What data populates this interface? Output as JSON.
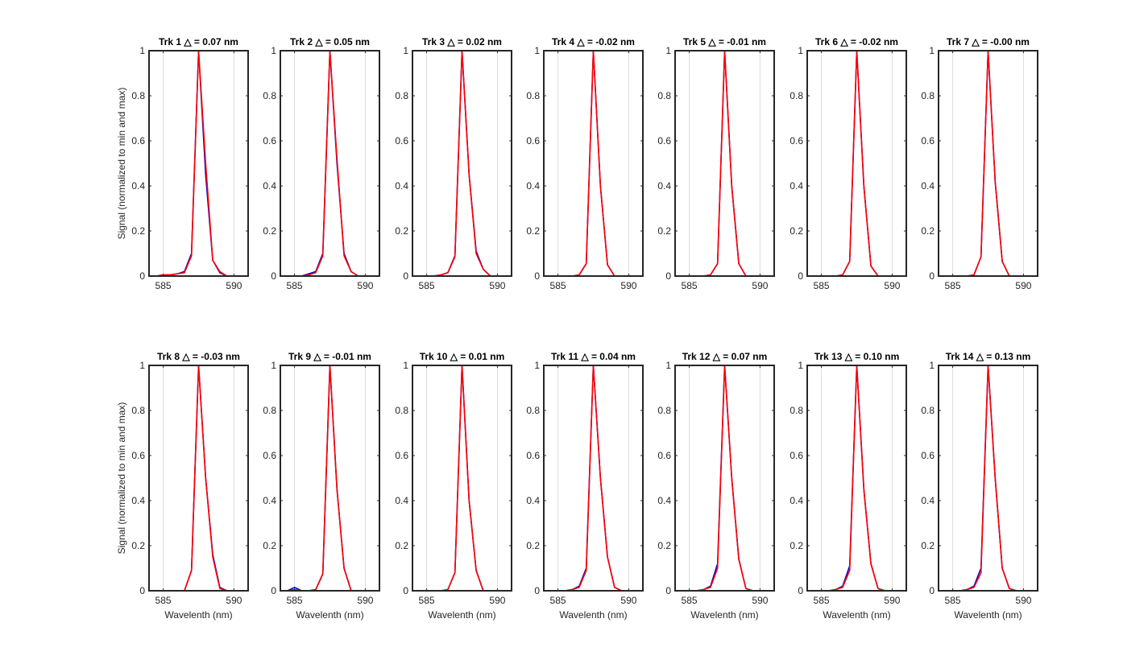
{
  "chart_data": {
    "type": "line",
    "grid": true,
    "xlim": [
      584,
      591
    ],
    "ylim": [
      0,
      1
    ],
    "xticks": [
      "585",
      "590"
    ],
    "yticks": [
      "0",
      "0.2",
      "0.4",
      "0.6",
      "0.8",
      "1"
    ],
    "xlabel": "Wavelenth (nm)",
    "ylabel": "Signal (normalized to min and max)",
    "x": [
      584,
      584.5,
      585,
      585.5,
      586,
      586.5,
      587,
      587.5,
      588,
      588.5,
      589,
      589.5,
      590,
      590.5,
      591
    ],
    "colors": {
      "blue": "#0000cc",
      "red": "#ff0000",
      "axis": "#262626",
      "grid": "#dcdcdc"
    },
    "panels": [
      {
        "title": "Trk 1 △ = 0.07 nm",
        "blue": [
          0,
          0,
          0.005,
          0.005,
          0.01,
          0.02,
          0.1,
          1,
          0.45,
          0.07,
          0.015,
          0,
          0,
          0,
          0
        ],
        "red": [
          0,
          0,
          0.005,
          0.005,
          0.01,
          0.015,
          0.09,
          1,
          0.5,
          0.07,
          0.02,
          0,
          0,
          0,
          0
        ]
      },
      {
        "title": "Trk 2 △ = 0.05 nm",
        "blue": [
          0,
          0,
          0,
          0,
          0.01,
          0.02,
          0.1,
          1,
          0.5,
          0.1,
          0.02,
          0,
          0,
          0,
          0
        ],
        "red": [
          0,
          0,
          0,
          0,
          0.005,
          0.015,
          0.09,
          1,
          0.52,
          0.09,
          0.02,
          0,
          0,
          0,
          0
        ]
      },
      {
        "title": "Trk 3 △ = 0.02 nm",
        "blue": [
          0,
          0,
          0,
          0,
          0.005,
          0.015,
          0.09,
          1,
          0.45,
          0.11,
          0.03,
          0,
          0,
          0,
          0
        ],
        "red": [
          0,
          0,
          0,
          0,
          0.005,
          0.015,
          0.085,
          1,
          0.45,
          0.1,
          0.03,
          0,
          0,
          0,
          0
        ]
      },
      {
        "title": "Trk 4 △ = -0.02 nm",
        "blue": [
          0,
          0,
          0,
          0,
          0,
          0.005,
          0.055,
          1,
          0.4,
          0.05,
          0,
          0,
          0,
          0,
          0
        ],
        "red": [
          0,
          0,
          0,
          0,
          0,
          0.005,
          0.055,
          1,
          0.4,
          0.05,
          0,
          0,
          0,
          0,
          0
        ]
      },
      {
        "title": "Trk 5 △ = -0.01 nm",
        "blue": [
          0,
          0,
          0,
          0,
          0,
          0.005,
          0.055,
          1,
          0.4,
          0.055,
          0,
          0,
          0,
          0,
          0
        ],
        "red": [
          0,
          0,
          0,
          0,
          0,
          0.005,
          0.055,
          1,
          0.4,
          0.055,
          0,
          0,
          0,
          0,
          0
        ]
      },
      {
        "title": "Trk 6 △ = -0.02 nm",
        "blue": [
          0,
          0,
          0,
          0,
          0,
          0.005,
          0.065,
          1,
          0.4,
          0.045,
          0,
          0,
          0,
          0,
          0
        ],
        "red": [
          0,
          0,
          0,
          0,
          0,
          0.005,
          0.065,
          1,
          0.4,
          0.045,
          0,
          0,
          0,
          0,
          0
        ]
      },
      {
        "title": "Trk 7 △ = -0.00 nm",
        "blue": [
          0,
          0,
          0,
          0,
          0,
          0.005,
          0.085,
          1,
          0.42,
          0.065,
          0,
          0,
          0,
          0,
          0
        ],
        "red": [
          0,
          0,
          0,
          0,
          0,
          0.005,
          0.085,
          1,
          0.42,
          0.065,
          0,
          0,
          0,
          0,
          0
        ]
      },
      {
        "title": "Trk 8 △ = -0.03 nm",
        "blue": [
          0,
          0,
          0,
          0,
          0,
          0,
          0.09,
          1,
          0.5,
          0.16,
          0.015,
          0,
          0,
          0,
          0
        ],
        "red": [
          0,
          0,
          0,
          0,
          0,
          0,
          0.09,
          1,
          0.5,
          0.15,
          0.01,
          0,
          0,
          0,
          0
        ]
      },
      {
        "title": "Trk 9 △ = -0.01 nm",
        "blue": [
          0,
          0,
          0.015,
          0,
          0,
          0.005,
          0.075,
          1,
          0.45,
          0.1,
          0,
          0,
          0,
          0,
          0
        ],
        "red": [
          0,
          0,
          0.005,
          0,
          0,
          0.005,
          0.075,
          1,
          0.45,
          0.1,
          0,
          0,
          0,
          0,
          0
        ]
      },
      {
        "title": "Trk 10 △ = 0.01 nm",
        "blue": [
          0,
          0,
          0,
          0,
          0,
          0.005,
          0.08,
          1,
          0.4,
          0.09,
          0,
          0,
          0,
          0,
          0
        ],
        "red": [
          0,
          0,
          0,
          0,
          0,
          0.005,
          0.08,
          1,
          0.4,
          0.09,
          0,
          0,
          0,
          0,
          0
        ]
      },
      {
        "title": "Trk 11 △ = 0.04 nm",
        "blue": [
          0,
          0,
          0,
          0,
          0.005,
          0.02,
          0.1,
          1,
          0.5,
          0.15,
          0.015,
          0,
          0,
          0,
          0
        ],
        "red": [
          0,
          0,
          0,
          0,
          0.005,
          0.015,
          0.09,
          1,
          0.5,
          0.15,
          0.015,
          0,
          0,
          0,
          0
        ]
      },
      {
        "title": "Trk 12 △ = 0.07 nm",
        "blue": [
          0,
          0,
          0,
          0,
          0.005,
          0.02,
          0.12,
          1,
          0.5,
          0.14,
          0.01,
          0,
          0,
          0,
          0
        ],
        "red": [
          0,
          0,
          0,
          0,
          0.005,
          0.015,
          0.1,
          1,
          0.5,
          0.14,
          0.01,
          0,
          0,
          0,
          0
        ]
      },
      {
        "title": "Trk 13 △ = 0.10 nm",
        "blue": [
          0,
          0,
          0,
          0,
          0.005,
          0.02,
          0.11,
          1,
          0.45,
          0.12,
          0.01,
          0,
          0,
          0,
          0
        ],
        "red": [
          0,
          0,
          0,
          0,
          0.005,
          0.015,
          0.09,
          1,
          0.45,
          0.12,
          0.01,
          0,
          0,
          0,
          0
        ]
      },
      {
        "title": "Trk 14 △ = 0.13 nm",
        "blue": [
          0,
          0,
          0,
          0,
          0.005,
          0.02,
          0.1,
          1,
          0.5,
          0.1,
          0.01,
          0,
          0,
          0,
          0
        ],
        "red": [
          0,
          0,
          0,
          0,
          0.005,
          0.015,
          0.08,
          1,
          0.5,
          0.1,
          0.01,
          0,
          0,
          0,
          0
        ]
      }
    ]
  }
}
